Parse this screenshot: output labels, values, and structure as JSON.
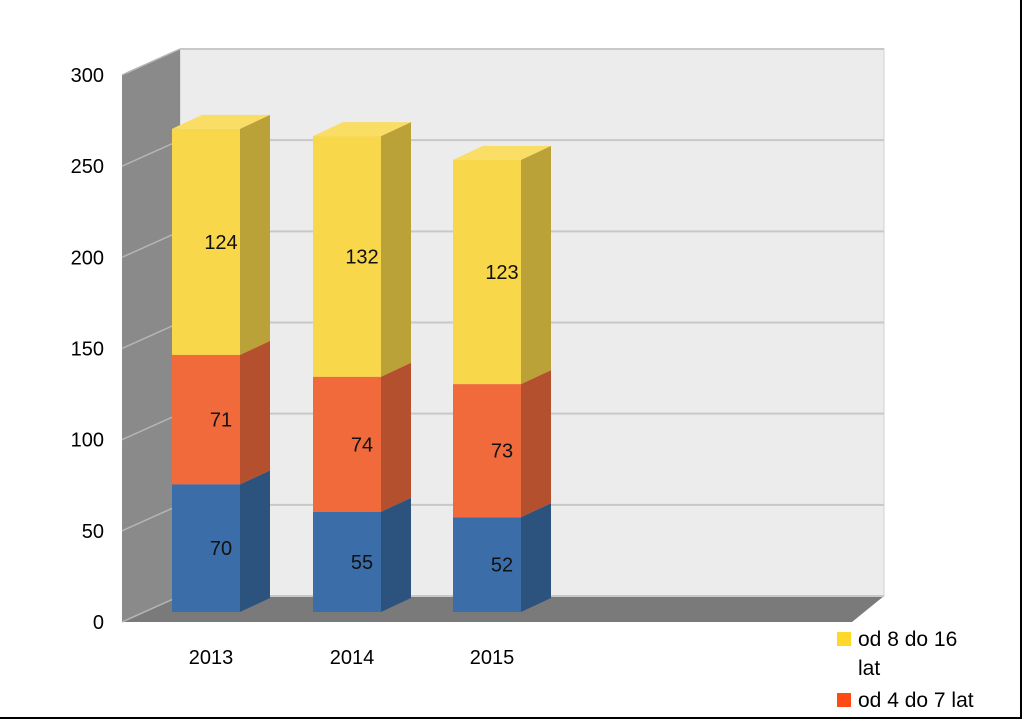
{
  "chart_data": {
    "type": "bar",
    "stacked": true,
    "three_d": true,
    "categories": [
      "2013",
      "2014",
      "2015"
    ],
    "series": [
      {
        "name": "",
        "color": "#3b6ea8",
        "values": [
          70,
          55,
          52
        ]
      },
      {
        "name": "od 4 do 7 lat",
        "color": "#f06a3c",
        "values": [
          71,
          74,
          73
        ]
      },
      {
        "name": "od 8 do 16 lat",
        "color": "#f8d74a",
        "values": [
          124,
          132,
          123
        ]
      }
    ],
    "y_ticks": [
      "0",
      "50",
      "100",
      "150",
      "200",
      "250",
      "300"
    ],
    "ylim": [
      0,
      300
    ],
    "grid": true,
    "legend_position": "bottom-right",
    "legend": [
      {
        "label_line1": "od 8 do 16",
        "label_line2": "lat",
        "color": "#ffd92a"
      },
      {
        "label_line1": "od 4 do 7 lat",
        "label_line2": "",
        "color": "#ff4a14"
      }
    ]
  }
}
